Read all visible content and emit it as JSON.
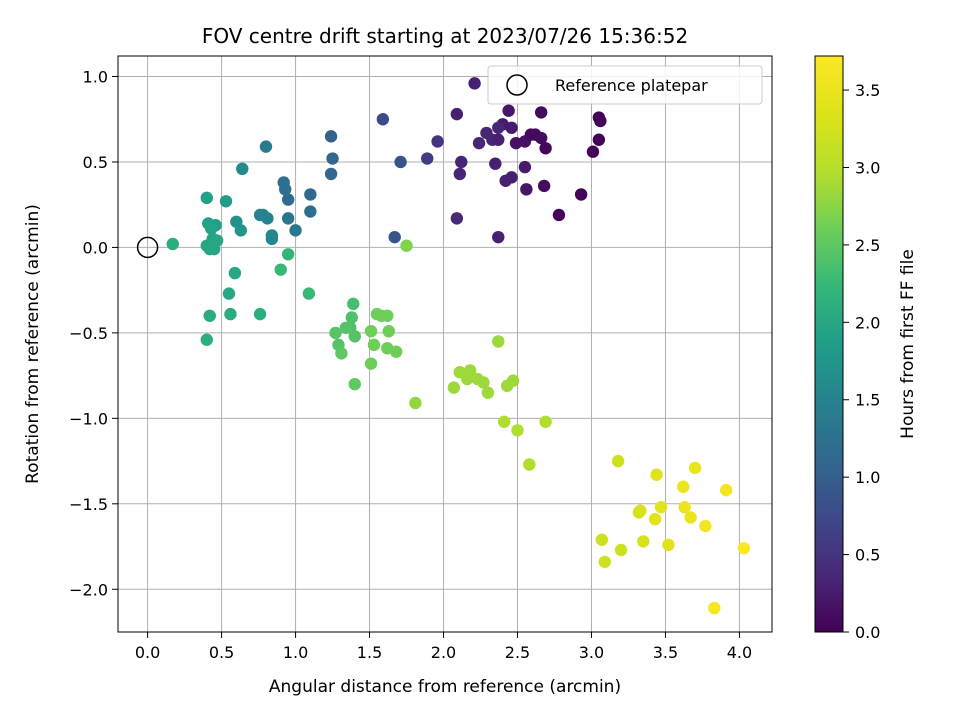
{
  "chart_data": {
    "type": "scatter",
    "title": "FOV centre drift starting at 2023/07/26 15:36:52",
    "xlabel": "Angular distance from reference (arcmin)",
    "ylabel": "Rotation from reference (arcmin)",
    "xlim": [
      -0.2,
      4.22
    ],
    "ylim": [
      -2.25,
      1.12
    ],
    "xticks": [
      0.0,
      0.5,
      1.0,
      1.5,
      2.0,
      2.5,
      3.0,
      3.5,
      4.0
    ],
    "xtick_labels": [
      "0.0",
      "0.5",
      "1.0",
      "1.5",
      "2.0",
      "2.5",
      "3.0",
      "3.5",
      "4.0"
    ],
    "yticks": [
      1.0,
      0.5,
      0.0,
      -0.5,
      -1.0,
      -1.5,
      -2.0
    ],
    "ytick_labels": [
      "1.0",
      "0.5",
      "0.0",
      "−0.5",
      "−1.0",
      "−1.5",
      "−2.0"
    ],
    "grid": true,
    "legend": {
      "position": "top-right",
      "entries": [
        "Reference platepar"
      ]
    },
    "reference_point": {
      "x": 0.0,
      "y": 0.0
    },
    "colorbar": {
      "label": "Hours from first FF file",
      "colormap": "viridis",
      "range": [
        0.0,
        3.72
      ],
      "ticks": [
        0.0,
        0.5,
        1.0,
        1.5,
        2.0,
        2.5,
        3.0,
        3.5
      ],
      "tick_labels": [
        "0.0",
        "0.5",
        "1.0",
        "1.5",
        "2.0",
        "2.5",
        "3.0",
        "3.5"
      ]
    },
    "series": [
      {
        "points": [
          [
            2.21,
            0.96,
            0.3
          ],
          [
            2.09,
            0.78,
            0.3
          ],
          [
            2.44,
            0.8,
            0.22
          ],
          [
            2.66,
            0.79,
            0.1
          ],
          [
            2.4,
            0.72,
            0.25
          ],
          [
            2.46,
            0.7,
            0.25
          ],
          [
            2.37,
            0.7,
            0.35
          ],
          [
            2.29,
            0.67,
            0.35
          ],
          [
            2.33,
            0.63,
            0.35
          ],
          [
            2.37,
            0.63,
            0.3
          ],
          [
            2.24,
            0.61,
            0.35
          ],
          [
            2.49,
            0.61,
            0.15
          ],
          [
            2.55,
            0.62,
            0.15
          ],
          [
            2.59,
            0.66,
            0.1
          ],
          [
            2.62,
            0.66,
            0.1
          ],
          [
            2.66,
            0.64,
            0.1
          ],
          [
            2.69,
            0.58,
            0.08
          ],
          [
            2.12,
            0.5,
            0.35
          ],
          [
            2.11,
            0.43,
            0.35
          ],
          [
            2.35,
            0.49,
            0.3
          ],
          [
            2.55,
            0.47,
            0.25
          ],
          [
            2.42,
            0.39,
            0.3
          ],
          [
            2.46,
            0.41,
            0.3
          ],
          [
            2.56,
            0.34,
            0.2
          ],
          [
            2.68,
            0.36,
            0.1
          ],
          [
            2.93,
            0.31,
            0.05
          ],
          [
            3.05,
            0.76,
            0.03
          ],
          [
            3.06,
            0.74,
            0.02
          ],
          [
            3.05,
            0.63,
            0.03
          ],
          [
            3.01,
            0.56,
            0.05
          ],
          [
            2.78,
            0.19,
            0.05
          ],
          [
            2.09,
            0.17,
            0.4
          ],
          [
            2.37,
            0.06,
            0.3
          ],
          [
            1.96,
            0.62,
            0.5
          ],
          [
            1.89,
            0.52,
            0.6
          ],
          [
            1.59,
            0.75,
            0.75
          ],
          [
            1.71,
            0.5,
            0.85
          ],
          [
            1.67,
            0.06,
            0.9
          ],
          [
            1.24,
            0.65,
            1.05
          ],
          [
            1.25,
            0.52,
            1.1
          ],
          [
            1.24,
            0.43,
            1.1
          ],
          [
            1.1,
            0.31,
            1.15
          ],
          [
            1.1,
            0.21,
            1.2
          ],
          [
            0.95,
            0.28,
            1.15
          ],
          [
            0.92,
            0.38,
            1.2
          ],
          [
            0.93,
            0.34,
            1.2
          ],
          [
            0.95,
            0.17,
            1.3
          ],
          [
            1.0,
            0.1,
            1.35
          ],
          [
            0.8,
            0.59,
            1.4
          ],
          [
            0.78,
            0.19,
            1.45
          ],
          [
            0.76,
            0.19,
            1.5
          ],
          [
            0.81,
            0.17,
            1.5
          ],
          [
            0.84,
            0.07,
            1.55
          ],
          [
            0.84,
            0.05,
            1.55
          ],
          [
            0.64,
            0.46,
            1.6
          ],
          [
            0.6,
            0.15,
            1.7
          ],
          [
            0.63,
            0.1,
            1.75
          ],
          [
            0.53,
            0.27,
            1.85
          ],
          [
            0.4,
            0.29,
            1.9
          ],
          [
            0.41,
            0.14,
            1.9
          ],
          [
            0.46,
            0.13,
            1.9
          ],
          [
            0.43,
            0.11,
            1.95
          ],
          [
            0.44,
            0.05,
            1.95
          ],
          [
            0.4,
            0.01,
            2.0
          ],
          [
            0.47,
            0.04,
            2.0
          ],
          [
            0.45,
            -0.01,
            2.0
          ],
          [
            0.42,
            -0.01,
            2.0
          ],
          [
            0.17,
            0.02,
            2.1
          ],
          [
            0.59,
            -0.15,
            2.0
          ],
          [
            0.55,
            -0.27,
            2.0
          ],
          [
            0.56,
            -0.39,
            2.05
          ],
          [
            0.42,
            -0.4,
            2.05
          ],
          [
            0.4,
            -0.54,
            2.1
          ],
          [
            0.76,
            -0.39,
            2.1
          ],
          [
            0.95,
            -0.04,
            2.2
          ],
          [
            0.9,
            -0.13,
            2.25
          ],
          [
            1.09,
            -0.27,
            2.25
          ],
          [
            1.39,
            -0.33,
            2.35
          ],
          [
            1.38,
            -0.41,
            2.4
          ],
          [
            1.37,
            -0.47,
            2.4
          ],
          [
            1.34,
            -0.47,
            2.45
          ],
          [
            1.4,
            -0.52,
            2.45
          ],
          [
            1.27,
            -0.5,
            2.45
          ],
          [
            1.29,
            -0.57,
            2.45
          ],
          [
            1.31,
            -0.62,
            2.5
          ],
          [
            1.4,
            -0.8,
            2.5
          ],
          [
            1.51,
            -0.49,
            2.6
          ],
          [
            1.55,
            -0.39,
            2.6
          ],
          [
            1.58,
            -0.4,
            2.6
          ],
          [
            1.62,
            -0.4,
            2.6
          ],
          [
            1.63,
            -0.49,
            2.6
          ],
          [
            1.53,
            -0.57,
            2.6
          ],
          [
            1.62,
            -0.59,
            2.6
          ],
          [
            1.68,
            -0.61,
            2.6
          ],
          [
            1.51,
            -0.68,
            2.6
          ],
          [
            1.75,
            0.01,
            2.7
          ],
          [
            1.81,
            -0.91,
            2.8
          ],
          [
            2.07,
            -0.82,
            2.85
          ],
          [
            2.11,
            -0.73,
            2.85
          ],
          [
            2.16,
            -0.77,
            2.85
          ],
          [
            2.18,
            -0.72,
            2.85
          ],
          [
            2.23,
            -0.77,
            2.85
          ],
          [
            2.27,
            -0.79,
            2.85
          ],
          [
            2.3,
            -0.85,
            2.85
          ],
          [
            2.43,
            -0.81,
            2.85
          ],
          [
            2.47,
            -0.78,
            2.85
          ],
          [
            2.37,
            -0.55,
            2.85
          ],
          [
            2.41,
            -1.02,
            2.95
          ],
          [
            2.5,
            -1.07,
            2.95
          ],
          [
            2.69,
            -1.02,
            2.95
          ],
          [
            2.58,
            -1.27,
            2.95
          ],
          [
            3.18,
            -1.25,
            3.2
          ],
          [
            3.07,
            -1.71,
            3.2
          ],
          [
            3.09,
            -1.84,
            3.2
          ],
          [
            3.2,
            -1.77,
            3.2
          ],
          [
            3.33,
            -1.54,
            3.3
          ],
          [
            3.32,
            -1.55,
            3.3
          ],
          [
            3.35,
            -1.72,
            3.3
          ],
          [
            3.43,
            -1.59,
            3.4
          ],
          [
            3.47,
            -1.52,
            3.4
          ],
          [
            3.52,
            -1.74,
            3.4
          ],
          [
            3.44,
            -1.33,
            3.4
          ],
          [
            3.62,
            -1.4,
            3.5
          ],
          [
            3.63,
            -1.52,
            3.5
          ],
          [
            3.67,
            -1.58,
            3.5
          ],
          [
            3.7,
            -1.29,
            3.5
          ],
          [
            3.77,
            -1.63,
            3.6
          ],
          [
            3.91,
            -1.42,
            3.6
          ],
          [
            3.83,
            -2.11,
            3.65
          ],
          [
            4.03,
            -1.76,
            3.7
          ]
        ]
      }
    ]
  }
}
